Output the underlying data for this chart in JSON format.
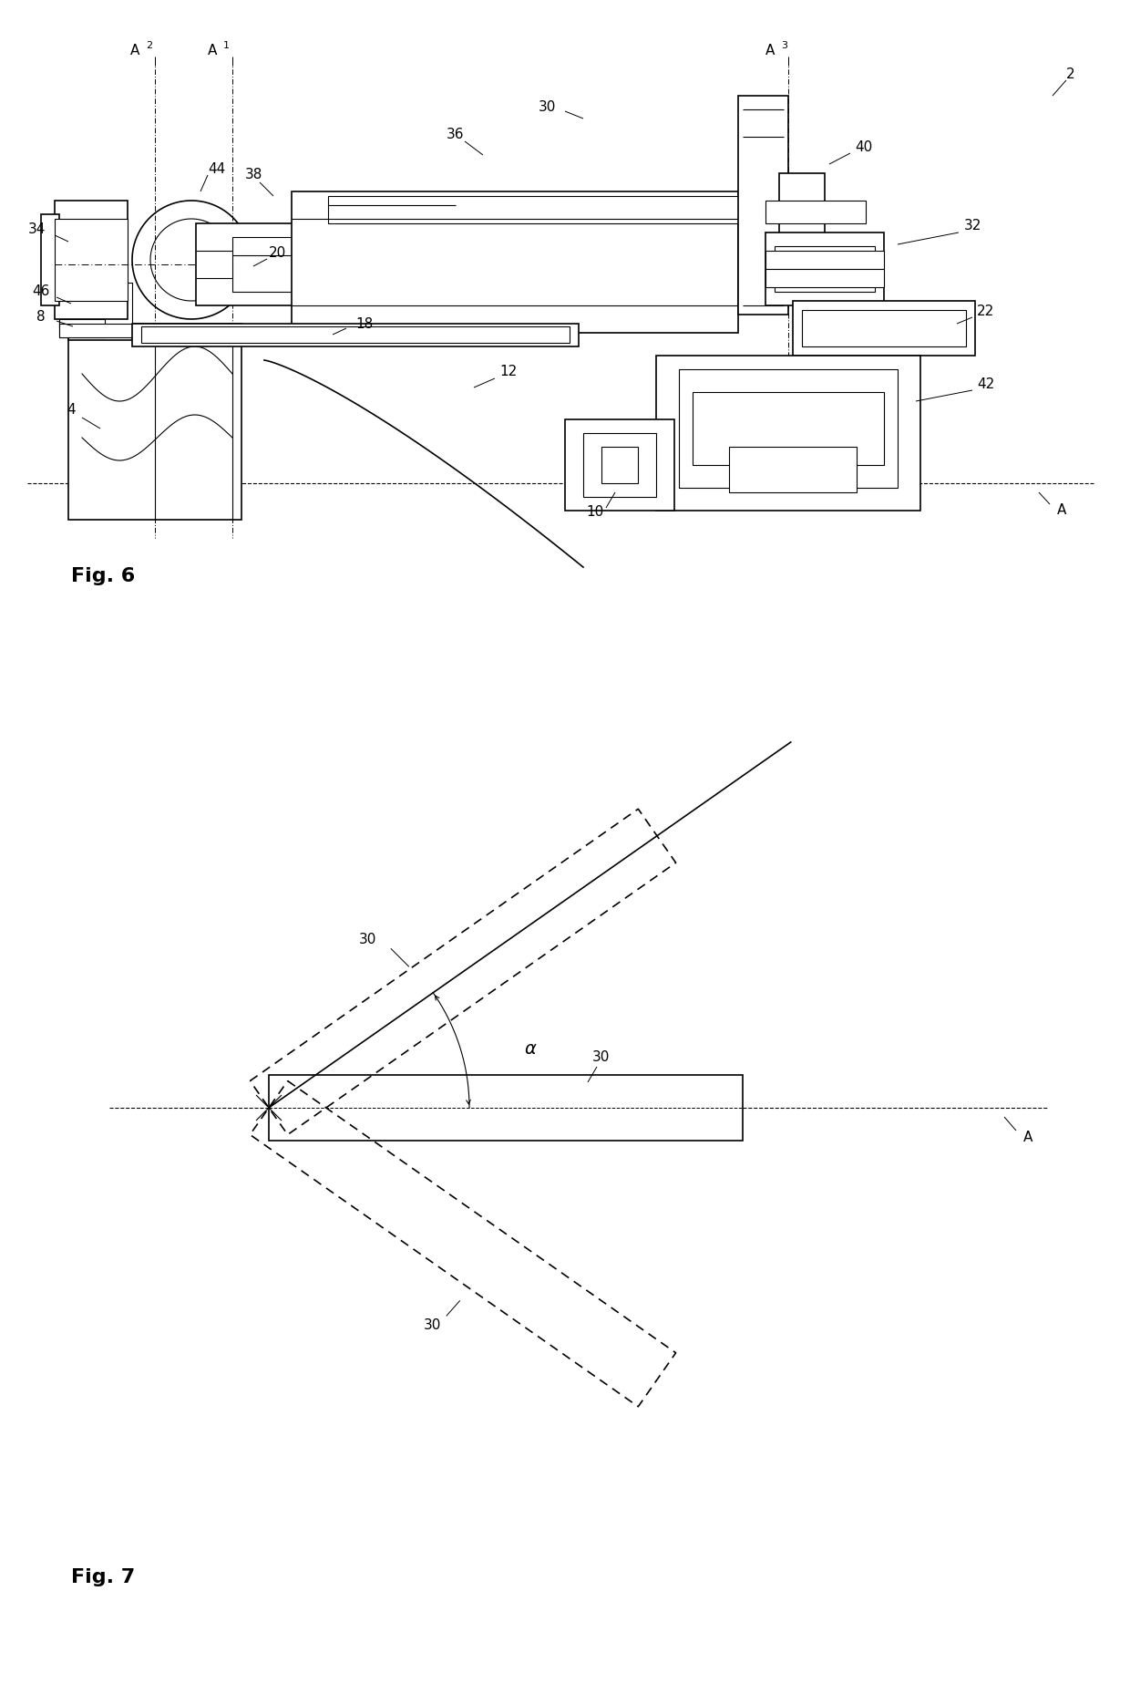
{
  "bg_color": "#ffffff",
  "line_color": "#000000",
  "fig_width": 12.4,
  "fig_height": 18.47,
  "fig6_label": "Fig. 6",
  "fig7_label": "Fig. 7"
}
